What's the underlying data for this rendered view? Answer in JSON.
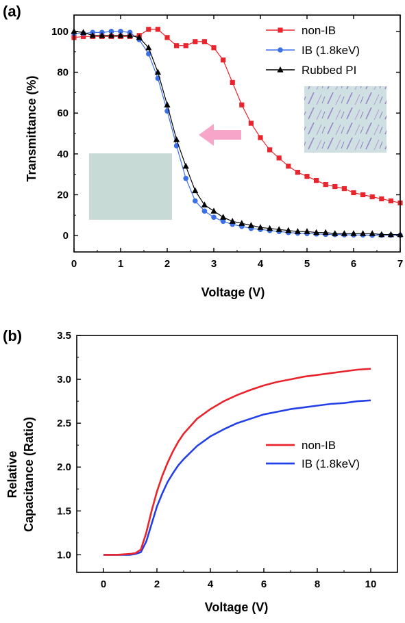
{
  "chart_data": [
    {
      "panel": "(a)",
      "type": "line",
      "xlabel": "Voltage (V)",
      "ylabel": "Transmittance (%)",
      "xlim": [
        0,
        7
      ],
      "ylim": [
        -8,
        108
      ],
      "xticks": [
        "0",
        "1",
        "2",
        "3",
        "4",
        "5",
        "6",
        "7"
      ],
      "yticks": [
        "0",
        "20",
        "40",
        "60",
        "80",
        "100"
      ],
      "legend_position": "top-right",
      "arrow_color": "#f7a6c9",
      "series": [
        {
          "name": "non-IB",
          "color": "#e8242c",
          "marker": "square",
          "x": [
            0,
            0.2,
            0.4,
            0.6,
            0.8,
            1.0,
            1.2,
            1.4,
            1.6,
            1.8,
            2.0,
            2.2,
            2.4,
            2.6,
            2.8,
            3.0,
            3.2,
            3.4,
            3.6,
            3.8,
            4.0,
            4.2,
            4.4,
            4.6,
            4.8,
            5.0,
            5.2,
            5.4,
            5.6,
            5.8,
            6.0,
            6.2,
            6.4,
            6.6,
            6.8,
            7.0
          ],
          "y": [
            97,
            97.5,
            97.5,
            97.5,
            97.5,
            97.5,
            97.5,
            98,
            101,
            101,
            97,
            93,
            93,
            95,
            95,
            92,
            86,
            75,
            64,
            55,
            48,
            42,
            38,
            34,
            31,
            29,
            27,
            25,
            24,
            23,
            21,
            20,
            19,
            18,
            17,
            16
          ]
        },
        {
          "name": "IB (1.8keV)",
          "color": "#3a6fe6",
          "marker": "circle",
          "x": [
            0,
            0.2,
            0.4,
            0.6,
            0.8,
            1.0,
            1.2,
            1.4,
            1.6,
            1.8,
            2.0,
            2.2,
            2.4,
            2.6,
            2.8,
            3.0,
            3.2,
            3.4,
            3.6,
            3.8,
            4.0,
            4.2,
            4.4,
            4.6,
            4.8,
            5.0,
            5.2,
            5.4,
            5.6,
            5.8,
            6.0,
            6.2,
            6.4,
            6.6,
            6.8,
            7.0
          ],
          "y": [
            99,
            99,
            99.5,
            99.5,
            100,
            100,
            99.5,
            96,
            89,
            77,
            61,
            44,
            28,
            17,
            12,
            9,
            7,
            5.5,
            4.5,
            3.5,
            3,
            2.5,
            2,
            1.5,
            1.2,
            1,
            0.8,
            0.6,
            0.5,
            0.4,
            0.3,
            0.3,
            0.2,
            0.2,
            0.2,
            0.2
          ]
        },
        {
          "name": "Rubbed PI",
          "color": "#000000",
          "marker": "triangle",
          "x": [
            0,
            0.2,
            0.4,
            0.6,
            0.8,
            1.0,
            1.2,
            1.4,
            1.6,
            1.8,
            2.0,
            2.2,
            2.4,
            2.6,
            2.8,
            3.0,
            3.2,
            3.4,
            3.6,
            3.8,
            4.0,
            4.2,
            4.4,
            4.6,
            4.8,
            5.0,
            5.2,
            5.4,
            5.6,
            5.8,
            6.0,
            6.2,
            6.4,
            6.6,
            6.8,
            7.0
          ],
          "y": [
            100,
            99.5,
            98,
            98,
            98,
            98,
            98,
            97,
            92,
            80,
            64,
            47,
            34,
            22,
            15,
            12,
            9,
            7,
            6,
            5,
            4,
            3.5,
            3,
            2.5,
            2,
            2,
            1.5,
            1.5,
            1,
            1,
            1,
            1,
            1,
            0.5,
            0.5,
            0.5
          ]
        }
      ]
    },
    {
      "panel": "(b)",
      "type": "line",
      "xlabel": "Voltage (V)",
      "ylabel_line1": "Relative",
      "ylabel_line2": "Capacitance (Ratio)",
      "xlim": [
        -1,
        11
      ],
      "ylim": [
        0.8,
        3.5
      ],
      "xticks": [
        "0",
        "2",
        "4",
        "6",
        "8",
        "10"
      ],
      "yticks": [
        "1.0",
        "1.5",
        "2.0",
        "2.5",
        "3.0",
        "3.5"
      ],
      "legend_position": "center-right",
      "series": [
        {
          "name": "non-IB",
          "color": "#e8242c",
          "x": [
            0,
            0.5,
            1.0,
            1.2,
            1.4,
            1.6,
            1.8,
            2.0,
            2.2,
            2.4,
            2.6,
            2.8,
            3.0,
            3.5,
            4.0,
            4.5,
            5.0,
            5.5,
            6.0,
            6.5,
            7.0,
            7.5,
            8.0,
            8.5,
            9.0,
            9.5,
            10.0
          ],
          "y": [
            1.0,
            1.0,
            1.01,
            1.02,
            1.06,
            1.25,
            1.5,
            1.72,
            1.9,
            2.05,
            2.18,
            2.29,
            2.38,
            2.55,
            2.66,
            2.75,
            2.82,
            2.88,
            2.93,
            2.97,
            3.0,
            3.03,
            3.05,
            3.07,
            3.09,
            3.11,
            3.12
          ]
        },
        {
          "name": "IB (1.8keV)",
          "color": "#2340e8",
          "x": [
            0,
            0.5,
            1.0,
            1.2,
            1.4,
            1.6,
            1.8,
            2.0,
            2.2,
            2.4,
            2.6,
            2.8,
            3.0,
            3.5,
            4.0,
            4.5,
            5.0,
            5.5,
            6.0,
            6.5,
            7.0,
            7.5,
            8.0,
            8.5,
            9.0,
            9.5,
            10.0
          ],
          "y": [
            1.0,
            1.0,
            1.0,
            1.01,
            1.03,
            1.15,
            1.35,
            1.55,
            1.7,
            1.83,
            1.93,
            2.02,
            2.09,
            2.24,
            2.35,
            2.43,
            2.5,
            2.55,
            2.6,
            2.63,
            2.66,
            2.68,
            2.7,
            2.72,
            2.73,
            2.75,
            2.76
          ]
        }
      ]
    }
  ]
}
